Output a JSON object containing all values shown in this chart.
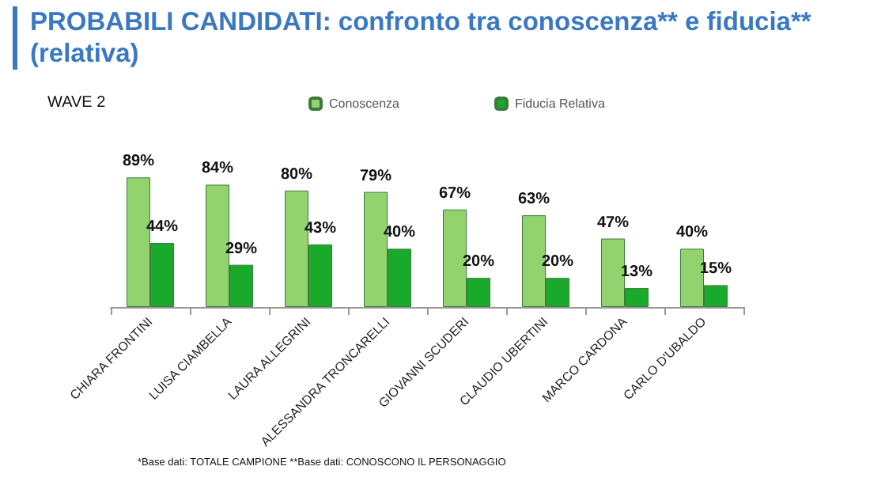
{
  "chart_data": {
    "type": "bar",
    "title": "PROBABILI CANDIDATI: confronto tra conoscenza** e fiducia** (relativa)",
    "subtitle": "WAVE 2",
    "categories": [
      "CHIARA FRONTINI",
      "LUISA CIAMBELLA",
      "LAURA ALLEGRINI",
      "ALESSANDRA TRONCARELLI",
      "GIOVANNI SCUDERI",
      "CLAUDIO UBERTINI",
      "MARCO CARDONA",
      "CARLO D'UBALDO"
    ],
    "series": [
      {
        "name": "Conoscenza",
        "color": "#92d36e",
        "values": [
          89,
          84,
          80,
          79,
          67,
          63,
          47,
          40
        ],
        "value_labels": [
          "89%",
          "84%",
          "80%",
          "79%",
          "67%",
          "63%",
          "47%",
          "40%"
        ]
      },
      {
        "name": "Fiducia Relativa",
        "color": "#1aaa2b",
        "values": [
          44,
          29,
          43,
          40,
          20,
          20,
          13,
          15
        ],
        "value_labels": [
          "44%",
          "29%",
          "43%",
          "40%",
          "20%",
          "20%",
          "13%",
          "15%"
        ]
      }
    ],
    "legend": "top",
    "annotations": [
      "*Base dati: TOTALE CAMPIONE **Base dati: CONOSCONO IL PERSONAGGIO"
    ]
  }
}
